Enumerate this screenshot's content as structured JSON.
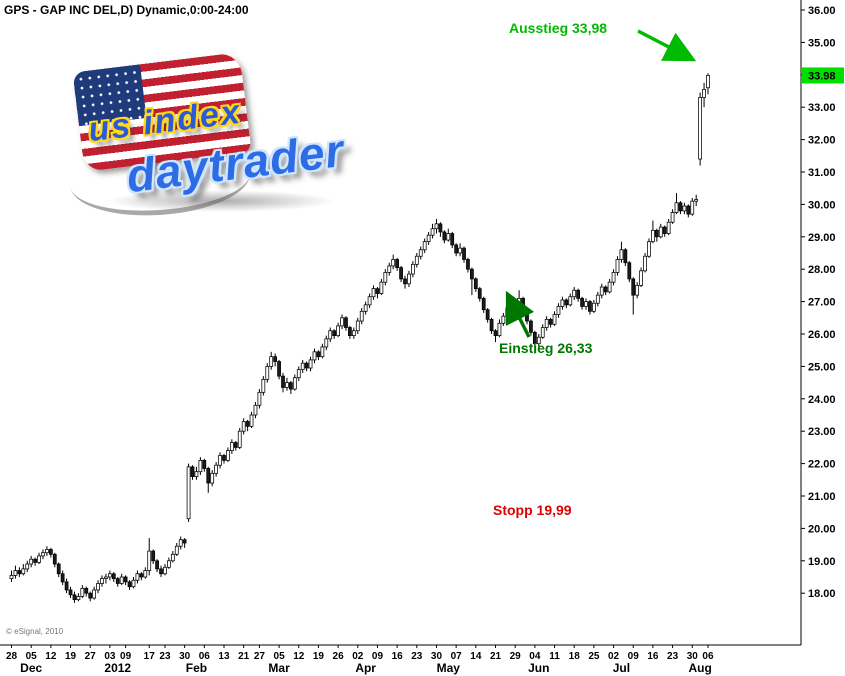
{
  "window": {
    "title": "GPS - GAP INC DEL,D) Dynamic,0:00-24:00",
    "copyright": "© eSignal, 2010"
  },
  "logo": {
    "top_text": "us index",
    "bottom_text": "daytrader"
  },
  "annotations": {
    "exit": {
      "label": "Ausstieg 33,98",
      "price": 33.98,
      "color": "#00BB00"
    },
    "entry": {
      "label": "Einstieg 26,33",
      "price": 26.33,
      "color": "#007700"
    },
    "stop": {
      "label": "Stopp 19,99",
      "price": 19.99,
      "color": "#DD0000"
    }
  },
  "chart_data": {
    "type": "candlestick",
    "symbol": "GPS",
    "company": "GAP INC DEL",
    "interval": "D",
    "session": "Dynamic,0:00-24:00",
    "date_range": "2011-11-28 to 2012-08-06",
    "ylim": [
      16.4,
      36.0
    ],
    "grid": false,
    "up_color": "#ffffff",
    "down_color": "#1b1b1b",
    "outline_color": "#000000",
    "price_axis": {
      "ticks": [
        "36.00",
        "35.00",
        "34.00",
        "33.00",
        "32.00",
        "31.00",
        "30.00",
        "29.00",
        "28.00",
        "27.00",
        "26.00",
        "25.00",
        "24.00",
        "23.00",
        "22.00",
        "21.00",
        "20.00",
        "19.00",
        "18.00"
      ],
      "last_price": "33.98",
      "last_price_bg": "#00DE00"
    },
    "time_axis": {
      "day_ticks": [
        {
          "label": "28",
          "i": 0
        },
        {
          "label": "05",
          "i": 5
        },
        {
          "label": "12",
          "i": 10
        },
        {
          "label": "19",
          "i": 15
        },
        {
          "label": "27",
          "i": 20
        },
        {
          "label": "03",
          "i": 25
        },
        {
          "label": "09",
          "i": 29
        },
        {
          "label": "17",
          "i": 35
        },
        {
          "label": "23",
          "i": 39
        },
        {
          "label": "30",
          "i": 44
        },
        {
          "label": "06",
          "i": 49
        },
        {
          "label": "13",
          "i": 54
        },
        {
          "label": "21",
          "i": 59
        },
        {
          "label": "27",
          "i": 63
        },
        {
          "label": "05",
          "i": 68
        },
        {
          "label": "12",
          "i": 73
        },
        {
          "label": "19",
          "i": 78
        },
        {
          "label": "26",
          "i": 83
        },
        {
          "label": "02",
          "i": 88
        },
        {
          "label": "09",
          "i": 93
        },
        {
          "label": "16",
          "i": 98
        },
        {
          "label": "23",
          "i": 103
        },
        {
          "label": "30",
          "i": 108
        },
        {
          "label": "07",
          "i": 113
        },
        {
          "label": "14",
          "i": 118
        },
        {
          "label": "21",
          "i": 123
        },
        {
          "label": "29",
          "i": 128
        },
        {
          "label": "04",
          "i": 133
        },
        {
          "label": "11",
          "i": 138
        },
        {
          "label": "18",
          "i": 143
        },
        {
          "label": "25",
          "i": 148
        },
        {
          "label": "02",
          "i": 153
        },
        {
          "label": "09",
          "i": 158
        },
        {
          "label": "16",
          "i": 163
        },
        {
          "label": "23",
          "i": 168
        },
        {
          "label": "30",
          "i": 173
        },
        {
          "label": "06",
          "i": 177
        }
      ],
      "month_ticks": [
        {
          "label": "Dec",
          "i": 5
        },
        {
          "label": "2012",
          "i": 27
        },
        {
          "label": "Feb",
          "i": 47
        },
        {
          "label": "Mar",
          "i": 68
        },
        {
          "label": "Apr",
          "i": 90
        },
        {
          "label": "May",
          "i": 111
        },
        {
          "label": "Jun",
          "i": 134
        },
        {
          "label": "Jul",
          "i": 155
        },
        {
          "label": "Aug",
          "i": 175
        }
      ]
    },
    "trade": {
      "entry": 26.33,
      "exit": 33.98,
      "stop": 19.99
    },
    "candles": [
      [
        18.45,
        18.7,
        18.35,
        18.55
      ],
      [
        18.55,
        18.85,
        18.45,
        18.7
      ],
      [
        18.7,
        18.8,
        18.5,
        18.6
      ],
      [
        18.6,
        18.9,
        18.55,
        18.75
      ],
      [
        18.75,
        19.0,
        18.65,
        18.9
      ],
      [
        18.9,
        19.15,
        18.8,
        19.05
      ],
      [
        19.05,
        19.1,
        18.85,
        18.95
      ],
      [
        18.95,
        19.25,
        18.9,
        19.15
      ],
      [
        19.15,
        19.35,
        19.05,
        19.25
      ],
      [
        19.25,
        19.45,
        19.15,
        19.35
      ],
      [
        19.35,
        19.4,
        19.1,
        19.2
      ],
      [
        19.2,
        19.25,
        18.8,
        18.9
      ],
      [
        18.9,
        18.95,
        18.5,
        18.6
      ],
      [
        18.6,
        18.7,
        18.25,
        18.35
      ],
      [
        18.35,
        18.45,
        18.0,
        18.1
      ],
      [
        18.1,
        18.2,
        17.85,
        17.95
      ],
      [
        17.95,
        18.05,
        17.7,
        17.8
      ],
      [
        17.8,
        18.0,
        17.75,
        17.9
      ],
      [
        17.9,
        18.25,
        17.85,
        18.15
      ],
      [
        18.15,
        18.2,
        17.9,
        18.0
      ],
      [
        18.0,
        18.05,
        17.75,
        17.85
      ],
      [
        17.85,
        18.2,
        17.8,
        18.1
      ],
      [
        18.1,
        18.4,
        18.0,
        18.3
      ],
      [
        18.3,
        18.55,
        18.2,
        18.45
      ],
      [
        18.45,
        18.6,
        18.3,
        18.5
      ],
      [
        18.5,
        18.7,
        18.4,
        18.6
      ],
      [
        18.6,
        18.65,
        18.35,
        18.45
      ],
      [
        18.45,
        18.5,
        18.2,
        18.3
      ],
      [
        18.3,
        18.6,
        18.25,
        18.5
      ],
      [
        18.5,
        18.55,
        18.25,
        18.35
      ],
      [
        18.35,
        18.4,
        18.1,
        18.2
      ],
      [
        18.2,
        18.5,
        18.15,
        18.4
      ],
      [
        18.4,
        18.7,
        18.3,
        18.6
      ],
      [
        18.6,
        18.65,
        18.4,
        18.5
      ],
      [
        18.5,
        18.8,
        18.45,
        18.7
      ],
      [
        18.7,
        19.7,
        18.55,
        19.3
      ],
      [
        19.3,
        19.35,
        18.9,
        19.0
      ],
      [
        19.0,
        19.05,
        18.65,
        18.75
      ],
      [
        18.75,
        18.85,
        18.5,
        18.6
      ],
      [
        18.6,
        18.9,
        18.55,
        18.8
      ],
      [
        18.8,
        19.1,
        18.75,
        19.0
      ],
      [
        19.0,
        19.3,
        18.95,
        19.2
      ],
      [
        19.2,
        19.55,
        19.15,
        19.45
      ],
      [
        19.45,
        19.75,
        19.35,
        19.65
      ],
      [
        19.65,
        19.7,
        19.4,
        19.55
      ],
      [
        20.3,
        22.0,
        20.2,
        21.9
      ],
      [
        21.9,
        21.95,
        21.5,
        21.6
      ],
      [
        21.6,
        21.9,
        21.5,
        21.75
      ],
      [
        21.75,
        22.2,
        21.65,
        22.1
      ],
      [
        22.1,
        22.15,
        21.75,
        21.85
      ],
      [
        21.85,
        21.9,
        21.1,
        21.4
      ],
      [
        21.4,
        21.8,
        21.3,
        21.7
      ],
      [
        21.7,
        22.05,
        21.6,
        21.95
      ],
      [
        21.95,
        22.35,
        21.85,
        22.25
      ],
      [
        22.25,
        22.3,
        22.0,
        22.1
      ],
      [
        22.1,
        22.5,
        22.05,
        22.4
      ],
      [
        22.4,
        22.75,
        22.3,
        22.65
      ],
      [
        22.65,
        22.7,
        22.4,
        22.5
      ],
      [
        22.5,
        23.1,
        22.45,
        23.0
      ],
      [
        23.0,
        23.4,
        22.9,
        23.3
      ],
      [
        23.3,
        23.35,
        23.0,
        23.15
      ],
      [
        23.15,
        23.6,
        23.1,
        23.5
      ],
      [
        23.5,
        23.9,
        23.4,
        23.8
      ],
      [
        23.8,
        24.3,
        23.7,
        24.2
      ],
      [
        24.2,
        24.7,
        24.1,
        24.6
      ],
      [
        24.6,
        25.1,
        24.5,
        25.0
      ],
      [
        25.0,
        25.45,
        24.9,
        25.3
      ],
      [
        25.3,
        25.4,
        25.0,
        25.15
      ],
      [
        25.15,
        25.2,
        24.6,
        24.7
      ],
      [
        24.7,
        24.8,
        24.2,
        24.35
      ],
      [
        24.35,
        24.65,
        24.25,
        24.5
      ],
      [
        24.5,
        24.55,
        24.15,
        24.3
      ],
      [
        24.3,
        24.75,
        24.25,
        24.65
      ],
      [
        24.65,
        25.0,
        24.55,
        24.9
      ],
      [
        24.9,
        25.2,
        24.8,
        25.1
      ],
      [
        25.1,
        25.15,
        24.85,
        24.95
      ],
      [
        24.95,
        25.3,
        24.85,
        25.2
      ],
      [
        25.2,
        25.55,
        25.1,
        25.45
      ],
      [
        25.45,
        25.5,
        25.2,
        25.3
      ],
      [
        25.3,
        25.7,
        25.25,
        25.6
      ],
      [
        25.6,
        25.95,
        25.5,
        25.85
      ],
      [
        25.85,
        26.2,
        25.75,
        26.1
      ],
      [
        26.1,
        26.15,
        25.85,
        25.95
      ],
      [
        25.95,
        26.35,
        25.9,
        26.25
      ],
      [
        26.25,
        26.6,
        26.15,
        26.5
      ],
      [
        26.5,
        26.55,
        26.1,
        26.2
      ],
      [
        26.2,
        26.25,
        25.85,
        25.95
      ],
      [
        25.95,
        26.2,
        25.85,
        26.1
      ],
      [
        26.1,
        26.5,
        26.0,
        26.4
      ],
      [
        26.4,
        26.8,
        26.3,
        26.7
      ],
      [
        26.7,
        27.0,
        26.6,
        26.9
      ],
      [
        26.9,
        27.25,
        26.8,
        27.15
      ],
      [
        27.15,
        27.5,
        27.05,
        27.4
      ],
      [
        27.4,
        27.45,
        27.1,
        27.25
      ],
      [
        27.25,
        27.7,
        27.2,
        27.6
      ],
      [
        27.6,
        28.0,
        27.5,
        27.9
      ],
      [
        27.9,
        28.2,
        27.8,
        28.1
      ],
      [
        28.1,
        28.45,
        28.0,
        28.3
      ],
      [
        28.3,
        28.35,
        27.95,
        28.05
      ],
      [
        28.05,
        28.1,
        27.6,
        27.7
      ],
      [
        27.7,
        27.8,
        27.4,
        27.55
      ],
      [
        27.55,
        27.95,
        27.45,
        27.85
      ],
      [
        27.85,
        28.25,
        27.75,
        28.15
      ],
      [
        28.15,
        28.5,
        28.05,
        28.4
      ],
      [
        28.4,
        28.7,
        28.3,
        28.6
      ],
      [
        28.6,
        28.95,
        28.5,
        28.85
      ],
      [
        28.85,
        29.15,
        28.75,
        29.05
      ],
      [
        29.05,
        29.4,
        28.95,
        29.25
      ],
      [
        29.25,
        29.55,
        29.1,
        29.4
      ],
      [
        29.4,
        29.45,
        29.0,
        29.15
      ],
      [
        29.15,
        29.2,
        28.8,
        28.9
      ],
      [
        28.9,
        29.25,
        28.85,
        29.1
      ],
      [
        29.1,
        29.15,
        28.65,
        28.75
      ],
      [
        28.75,
        28.8,
        28.4,
        28.5
      ],
      [
        28.5,
        28.8,
        28.4,
        28.65
      ],
      [
        28.65,
        28.7,
        28.2,
        28.3
      ],
      [
        28.3,
        28.35,
        27.9,
        28.0
      ],
      [
        28.0,
        28.05,
        27.2,
        27.7
      ],
      [
        27.7,
        27.75,
        27.3,
        27.4
      ],
      [
        27.4,
        27.45,
        27.0,
        27.1
      ],
      [
        27.1,
        27.15,
        26.65,
        26.75
      ],
      [
        26.75,
        26.8,
        26.35,
        26.45
      ],
      [
        26.45,
        26.5,
        26.0,
        26.1
      ],
      [
        26.1,
        26.15,
        25.75,
        25.95
      ],
      [
        25.95,
        26.45,
        25.9,
        26.33
      ],
      [
        26.33,
        26.65,
        26.25,
        26.55
      ],
      [
        26.55,
        26.9,
        26.45,
        26.8
      ],
      [
        26.8,
        26.85,
        26.5,
        26.6
      ],
      [
        26.6,
        27.0,
        26.55,
        26.9
      ],
      [
        26.9,
        27.35,
        26.85,
        27.1
      ],
      [
        27.1,
        27.15,
        26.6,
        26.7
      ],
      [
        26.7,
        26.75,
        26.3,
        26.4
      ],
      [
        26.4,
        26.45,
        25.95,
        26.05
      ],
      [
        26.05,
        26.1,
        25.4,
        25.7
      ],
      [
        25.7,
        26.0,
        25.6,
        25.9
      ],
      [
        25.9,
        26.3,
        25.85,
        26.2
      ],
      [
        26.2,
        26.55,
        26.1,
        26.45
      ],
      [
        26.45,
        26.5,
        26.2,
        26.3
      ],
      [
        26.3,
        26.7,
        26.25,
        26.6
      ],
      [
        26.6,
        26.95,
        26.5,
        26.85
      ],
      [
        26.85,
        27.15,
        26.75,
        27.05
      ],
      [
        27.05,
        27.1,
        26.8,
        26.9
      ],
      [
        26.9,
        27.25,
        26.85,
        27.15
      ],
      [
        27.15,
        27.45,
        27.05,
        27.35
      ],
      [
        27.35,
        27.4,
        27.0,
        27.1
      ],
      [
        27.1,
        27.15,
        26.75,
        26.85
      ],
      [
        26.85,
        27.1,
        26.75,
        27.0
      ],
      [
        27.0,
        27.05,
        26.6,
        26.7
      ],
      [
        26.7,
        27.05,
        26.65,
        26.95
      ],
      [
        26.95,
        27.3,
        26.85,
        27.2
      ],
      [
        27.2,
        27.55,
        27.1,
        27.45
      ],
      [
        27.45,
        27.5,
        27.2,
        27.3
      ],
      [
        27.3,
        27.7,
        27.25,
        27.6
      ],
      [
        27.6,
        28.0,
        27.5,
        27.9
      ],
      [
        27.9,
        28.4,
        27.8,
        28.3
      ],
      [
        28.3,
        28.85,
        28.2,
        28.6
      ],
      [
        28.6,
        28.65,
        28.1,
        28.2
      ],
      [
        28.2,
        28.25,
        27.6,
        27.7
      ],
      [
        27.7,
        27.75,
        26.6,
        27.2
      ],
      [
        27.2,
        27.6,
        27.1,
        27.5
      ],
      [
        27.5,
        28.05,
        27.45,
        27.95
      ],
      [
        27.95,
        28.5,
        27.9,
        28.4
      ],
      [
        28.4,
        28.95,
        28.35,
        28.85
      ],
      [
        28.85,
        29.5,
        28.8,
        29.2
      ],
      [
        29.2,
        29.25,
        28.85,
        29.0
      ],
      [
        29.0,
        29.4,
        28.95,
        29.3
      ],
      [
        29.3,
        29.35,
        29.0,
        29.1
      ],
      [
        29.1,
        29.55,
        29.05,
        29.45
      ],
      [
        29.45,
        29.85,
        29.4,
        29.75
      ],
      [
        29.75,
        30.35,
        29.7,
        30.05
      ],
      [
        30.05,
        30.1,
        29.7,
        29.8
      ],
      [
        29.8,
        30.05,
        29.7,
        29.95
      ],
      [
        29.95,
        30.0,
        29.6,
        29.7
      ],
      [
        29.7,
        30.2,
        29.65,
        30.1
      ],
      [
        30.1,
        30.3,
        29.95,
        30.15
      ],
      [
        31.4,
        33.45,
        31.2,
        33.3
      ],
      [
        33.3,
        33.75,
        33.0,
        33.55
      ],
      [
        33.6,
        34.05,
        33.4,
        33.98
      ]
    ]
  }
}
